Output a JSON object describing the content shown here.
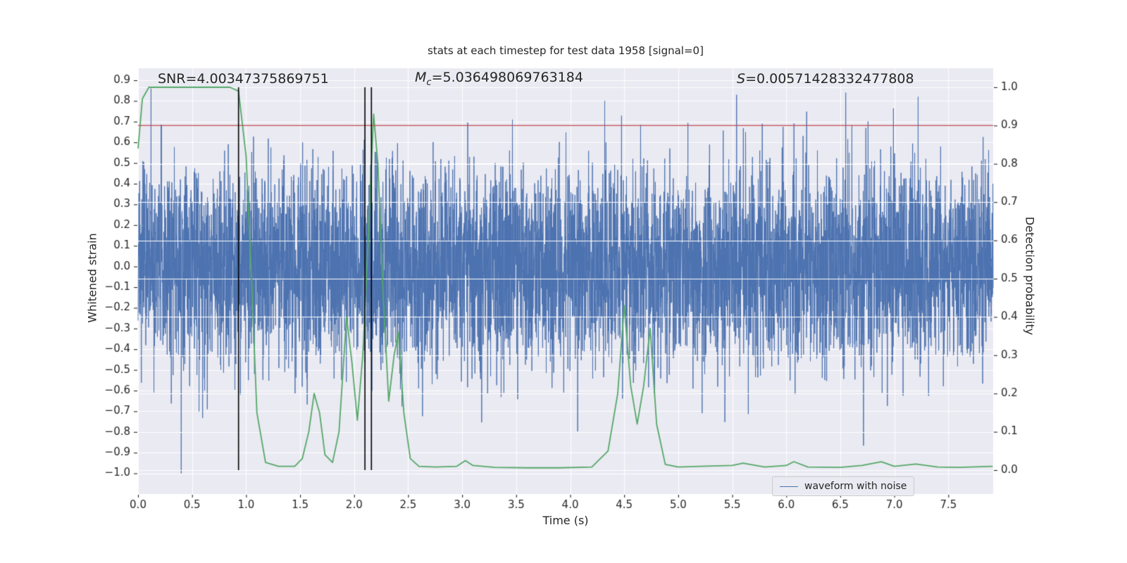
{
  "chart_data": {
    "type": "line",
    "title": "stats at each timestep for test data 1958 [signal=0]",
    "xlabel": "Time (s)",
    "ylabel_left": "Whitened strain",
    "ylabel_right": "Detection probability",
    "xlim": [
      0,
      7.915
    ],
    "ylim_left": [
      -1.1,
      0.958
    ],
    "ylim_right": [
      -0.0625,
      1.0496
    ],
    "xticks": [
      0.0,
      0.5,
      1.0,
      1.5,
      2.0,
      2.5,
      3.0,
      3.5,
      4.0,
      4.5,
      5.0,
      5.5,
      6.0,
      6.5,
      7.0,
      7.5
    ],
    "yticks_left": [
      -1.0,
      -0.9,
      -0.8,
      -0.7,
      -0.6,
      -0.5,
      -0.4,
      -0.3,
      -0.2,
      -0.1,
      0.0,
      0.1,
      0.2,
      0.3,
      0.4,
      0.5,
      0.6,
      0.7,
      0.8,
      0.9
    ],
    "yticks_right": [
      0.0,
      0.1,
      0.2,
      0.3,
      0.4,
      0.5,
      0.6,
      0.7,
      0.8,
      0.9,
      1.0
    ],
    "background": "#eaeaf2",
    "grid_color": "#ffffff",
    "grid": true,
    "annotations": {
      "snr_text": "SNR=4.00347375869751",
      "mc": {
        "symbol": "M",
        "sub": "c",
        "value": "=5.036498069763184"
      },
      "s": {
        "symbol": "S",
        "value": "=0.00571428332477808"
      }
    },
    "threshold_line": {
      "axis": "right",
      "value": 0.9,
      "color": "#c44e52"
    },
    "event_lines": {
      "x": [
        0.93,
        2.1,
        2.16
      ],
      "color": "#000000",
      "span_right_axis": [
        0.0,
        1.0
      ]
    },
    "series": [
      {
        "name": "waveform with noise",
        "kind": "noise",
        "axis": "left",
        "color": "#4c72b0",
        "seed": 1958,
        "n_points": 6200,
        "std": 0.235,
        "clip": [
          -1.02,
          0.88
        ],
        "notable_spikes": [
          {
            "x": 0.12,
            "y": 0.86
          },
          {
            "x": 0.4,
            "y": -1.0
          },
          {
            "x": 4.32,
            "y": 0.8
          },
          {
            "x": 6.55,
            "y": 0.84
          },
          {
            "x": 7.22,
            "y": 0.82
          }
        ]
      },
      {
        "name": "detection probability",
        "kind": "line",
        "axis": "right",
        "color": "#55a868",
        "x": [
          0.0,
          0.04,
          0.1,
          0.3,
          0.6,
          0.85,
          0.93,
          1.0,
          1.05,
          1.1,
          1.18,
          1.3,
          1.45,
          1.52,
          1.58,
          1.63,
          1.68,
          1.73,
          1.8,
          1.86,
          1.93,
          1.98,
          2.03,
          2.08,
          2.13,
          2.18,
          2.22,
          2.27,
          2.32,
          2.37,
          2.41,
          2.46,
          2.52,
          2.6,
          2.75,
          2.95,
          3.03,
          3.1,
          3.3,
          3.6,
          3.9,
          4.2,
          4.35,
          4.44,
          4.5,
          4.56,
          4.62,
          4.68,
          4.74,
          4.8,
          4.88,
          5.0,
          5.2,
          5.5,
          5.6,
          5.8,
          6.0,
          6.07,
          6.2,
          6.5,
          6.7,
          6.88,
          7.0,
          7.2,
          7.4,
          7.6,
          7.91
        ],
        "y": [
          0.84,
          0.97,
          1.0,
          1.0,
          1.0,
          1.0,
          0.99,
          0.82,
          0.5,
          0.15,
          0.02,
          0.01,
          0.01,
          0.03,
          0.1,
          0.2,
          0.15,
          0.04,
          0.02,
          0.1,
          0.4,
          0.28,
          0.13,
          0.3,
          0.6,
          0.93,
          0.8,
          0.45,
          0.18,
          0.3,
          0.36,
          0.15,
          0.03,
          0.01,
          0.008,
          0.01,
          0.025,
          0.012,
          0.007,
          0.006,
          0.006,
          0.008,
          0.05,
          0.2,
          0.43,
          0.22,
          0.12,
          0.22,
          0.37,
          0.12,
          0.015,
          0.008,
          0.01,
          0.012,
          0.018,
          0.008,
          0.012,
          0.022,
          0.008,
          0.007,
          0.012,
          0.022,
          0.01,
          0.016,
          0.008,
          0.007,
          0.01
        ]
      }
    ],
    "legend": {
      "label": "waveform with noise",
      "position": "lower right"
    },
    "text_color": "#262626"
  }
}
